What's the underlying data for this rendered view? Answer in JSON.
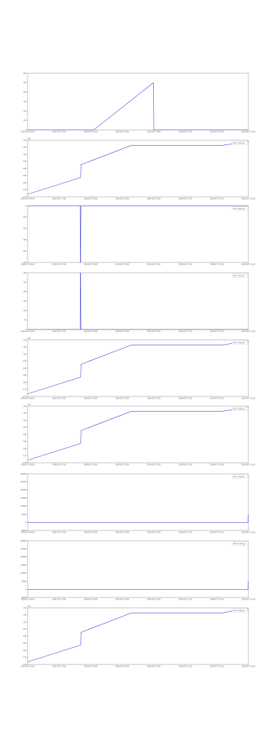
{
  "colors": {
    "series": "#3b3bdc",
    "axis": "#666666",
    "background": "#ffffff"
  },
  "chart_data": [
    {
      "type": "line",
      "title": "",
      "legend": null,
      "offset_label": "",
      "x_ticks": [
        "2026-05-27 06:00",
        "2026-05-27 07:00",
        "2026-05-27 08:00",
        "2026-05-27 09:00",
        "2026-05-27 10:00",
        "2026-05-27 11:00",
        "2026-05-27 12:00",
        "2026-05-27 13:00"
      ],
      "y_ticks": [
        "0",
        "100",
        "200",
        "300",
        "400",
        "500",
        "600"
      ],
      "ylim": [
        0,
        600
      ],
      "series": [
        {
          "x": [
            0,
            0.3,
            0.57,
            0.572,
            1.0
          ],
          "y": [
            0,
            0,
            500,
            0,
            0
          ]
        }
      ]
    },
    {
      "type": "line",
      "title": "",
      "legend": "ch_rpm_a",
      "offset_label": "1e6",
      "x_ticks": [
        "2026-05-27 06:00",
        "2026-05-27 07:00",
        "2026-05-27 08:00",
        "2026-05-27 09:00",
        "2026-05-27 10:00",
        "2026-05-27 11:00",
        "2026-05-27 12:00",
        "2026-05-27 13:00"
      ],
      "y_ticks": [
        "0.70",
        "0.75",
        "0.80",
        "0.85",
        "0.90",
        "0.95",
        "1.00",
        "1.05",
        "1.10"
      ],
      "ylim": [
        0.68,
        1.12
      ],
      "series": [
        {
          "x": [
            0,
            0.24,
            0.242,
            0.47,
            0.88,
            1.0
          ],
          "y": [
            0.7,
            0.83,
            0.93,
            1.08,
            1.08,
            1.11
          ]
        }
      ]
    },
    {
      "type": "line",
      "title": "",
      "legend": "ch_rpm_b",
      "offset_label": "",
      "x_ticks": [
        "2026-05-27 06:00",
        "2026-05-27 07:00",
        "2026-05-27 08:00",
        "2026-05-27 09:00",
        "2026-05-27 10:00",
        "2026-05-27 11:00",
        "2026-05-27 12:00",
        "2026-05-27 13:00"
      ],
      "y_ticks": [
        "-500",
        "-400",
        "-300",
        "-200",
        "-100",
        "0"
      ],
      "ylim": [
        -500,
        0
      ],
      "series": [
        {
          "x": [
            0,
            0.238,
            0.239,
            0.24,
            0.241,
            1.0
          ],
          "y": [
            0,
            0,
            -500,
            -500,
            0,
            0
          ]
        }
      ]
    },
    {
      "type": "line",
      "title": "",
      "legend": "ch_rpm_c",
      "offset_label": "",
      "x_ticks": [
        "2026-05-27 06:00",
        "2026-05-27 07:00",
        "2026-05-27 08:00",
        "2026-05-27 09:00",
        "2026-05-27 10:00",
        "2026-05-27 11:00",
        "2026-05-27 12:00",
        "2026-05-27 13:00"
      ],
      "y_ticks": [
        "0",
        "50",
        "100",
        "150",
        "200",
        "250",
        "300"
      ],
      "ylim": [
        0,
        300
      ],
      "series": [
        {
          "x": [
            0,
            0.238,
            0.239,
            0.24,
            0.241,
            1.0
          ],
          "y": [
            0,
            0,
            300,
            300,
            0,
            0
          ]
        }
      ]
    },
    {
      "type": "line",
      "title": "",
      "legend": "ch_rpm_d",
      "offset_label": "1e6",
      "x_ticks": [
        "2026-05-27 06:00",
        "2026-05-27 07:00",
        "2026-05-27 08:00",
        "2026-05-27 09:00",
        "2026-05-27 10:00",
        "2026-05-27 11:00",
        "2026-05-27 12:00",
        "2026-05-27 13:00"
      ],
      "y_ticks": [
        "0.70",
        "0.75",
        "0.80",
        "0.85",
        "0.90",
        "0.95",
        "1.00",
        "1.05",
        "1.10"
      ],
      "ylim": [
        0.68,
        1.12
      ],
      "series": [
        {
          "x": [
            0,
            0.24,
            0.242,
            0.47,
            0.88,
            1.0
          ],
          "y": [
            0.7,
            0.83,
            0.93,
            1.08,
            1.08,
            1.11
          ]
        }
      ]
    },
    {
      "type": "line",
      "title": "",
      "legend": "ch_rpm_e",
      "offset_label": "1e6",
      "x_ticks": [
        "2026-05-27 06:00",
        "2026-05-27 07:00",
        "2026-05-27 08:00",
        "2026-05-27 09:00",
        "2026-05-27 10:00",
        "2026-05-27 11:00",
        "2026-05-27 12:00",
        "2026-05-27 13:00"
      ],
      "y_ticks": [
        "0.70",
        "0.75",
        "0.80",
        "0.85",
        "0.90",
        "0.95",
        "1.00",
        "1.05",
        "1.10"
      ],
      "ylim": [
        0.68,
        1.12
      ],
      "series": [
        {
          "x": [
            0,
            0.24,
            0.242,
            0.47,
            0.88,
            1.0
          ],
          "y": [
            0.7,
            0.83,
            0.93,
            1.08,
            1.08,
            1.11
          ]
        }
      ]
    },
    {
      "type": "line",
      "title": "",
      "legend": "ch_rpm_f",
      "offset_label": "",
      "x_ticks": [
        "2026-05-27 06:00",
        "2026-05-27 07:00",
        "2026-05-27 08:00",
        "2026-05-27 09:00",
        "2026-05-27 10:00",
        "2026-05-27 11:00",
        "2026-05-27 12:00",
        "2026-05-27 13:00"
      ],
      "y_ticks": [
        "-50000",
        "0",
        "50000",
        "100000",
        "150000",
        "200000",
        "250000",
        "300000"
      ],
      "ylim": [
        -50000,
        300000
      ],
      "series": [
        {
          "x": [
            0,
            0.238,
            0.24,
            0.242,
            0.998,
            1.0
          ],
          "y": [
            0,
            0,
            2000,
            0,
            0,
            50000
          ]
        }
      ]
    },
    {
      "type": "line",
      "title": "",
      "legend": "ch_rpm_g",
      "offset_label": "",
      "x_ticks": [
        "2026-05-27 06:00",
        "2026-05-27 07:00",
        "2026-05-27 08:00",
        "2026-05-27 09:00",
        "2026-05-27 10:00",
        "2026-05-27 11:00",
        "2026-05-27 12:00",
        "2026-05-27 13:00"
      ],
      "y_ticks": [
        "-50000",
        "0",
        "50000",
        "100000",
        "150000",
        "200000",
        "250000",
        "300000"
      ],
      "ylim": [
        -50000,
        300000
      ],
      "series": [
        {
          "x": [
            0,
            0.238,
            0.24,
            0.242,
            0.998,
            1.0
          ],
          "y": [
            0,
            0,
            2000,
            0,
            0,
            50000
          ]
        }
      ]
    },
    {
      "type": "line",
      "title": "",
      "legend": "ch_rpm_h",
      "offset_label": "1e6",
      "x_ticks": [
        "2026-05-27 06:00",
        "2026-05-27 07:00",
        "2026-05-27 08:00",
        "2026-05-27 09:00",
        "2026-05-27 10:00",
        "2026-05-27 11:00",
        "2026-05-27 12:00",
        "2026-05-27 13:00"
      ],
      "y_ticks": [
        "0.70",
        "0.75",
        "0.80",
        "0.85",
        "0.90",
        "0.95",
        "1.00",
        "1.05",
        "1.10"
      ],
      "ylim": [
        0.68,
        1.12
      ],
      "series": [
        {
          "x": [
            0,
            0.24,
            0.242,
            0.47,
            0.88,
            0.97,
            1.0
          ],
          "y": [
            0.7,
            0.83,
            0.93,
            1.08,
            1.08,
            1.11,
            1.11
          ]
        }
      ]
    }
  ]
}
